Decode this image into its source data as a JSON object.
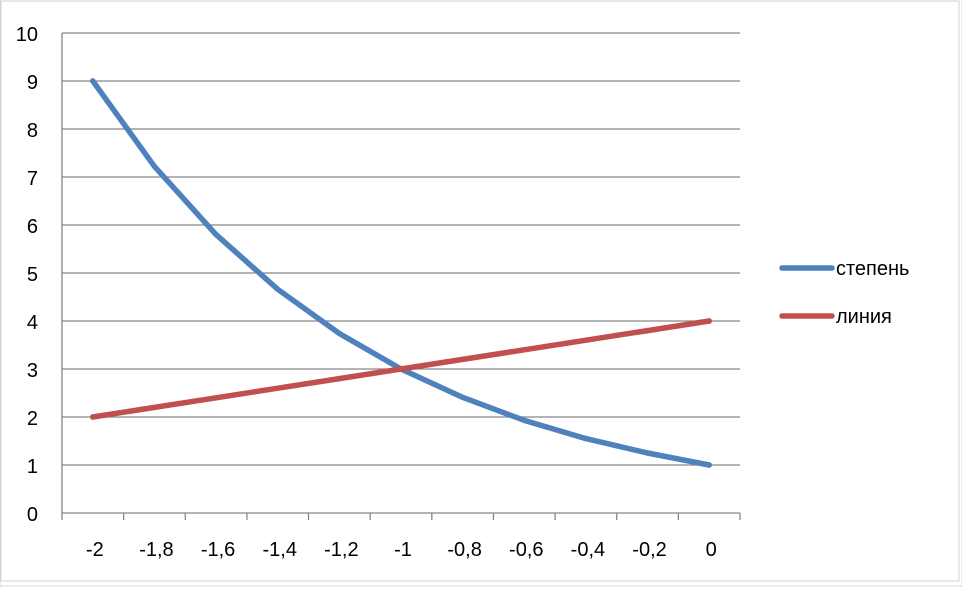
{
  "chart_data": {
    "type": "line",
    "title": "",
    "xlabel": "",
    "ylabel": "",
    "x": [
      -2,
      -1.8,
      -1.6,
      -1.4,
      -1.2,
      -1,
      -0.8,
      -0.6,
      -0.4,
      -0.2,
      0
    ],
    "x_tick_labels": [
      "-2",
      "-1,8",
      "-1,6",
      "-1,4",
      "-1,2",
      "-1",
      "-0,8",
      "-0,6",
      "-0,4",
      "-0,2",
      "0"
    ],
    "ylim": [
      0,
      10
    ],
    "y_ticks": [
      0,
      1,
      2,
      3,
      4,
      5,
      6,
      7,
      8,
      9,
      10
    ],
    "grid": true,
    "legend_position": "right",
    "series": [
      {
        "name": "степень",
        "color": "#4f81bd",
        "values": [
          9,
          7.22,
          5.8,
          4.66,
          3.74,
          3,
          2.41,
          1.93,
          1.55,
          1.25,
          1
        ]
      },
      {
        "name": "линия",
        "color": "#c0504d",
        "values": [
          2,
          2.2,
          2.4,
          2.6,
          2.8,
          3,
          3.2,
          3.4,
          3.6,
          3.8,
          4
        ]
      }
    ]
  }
}
